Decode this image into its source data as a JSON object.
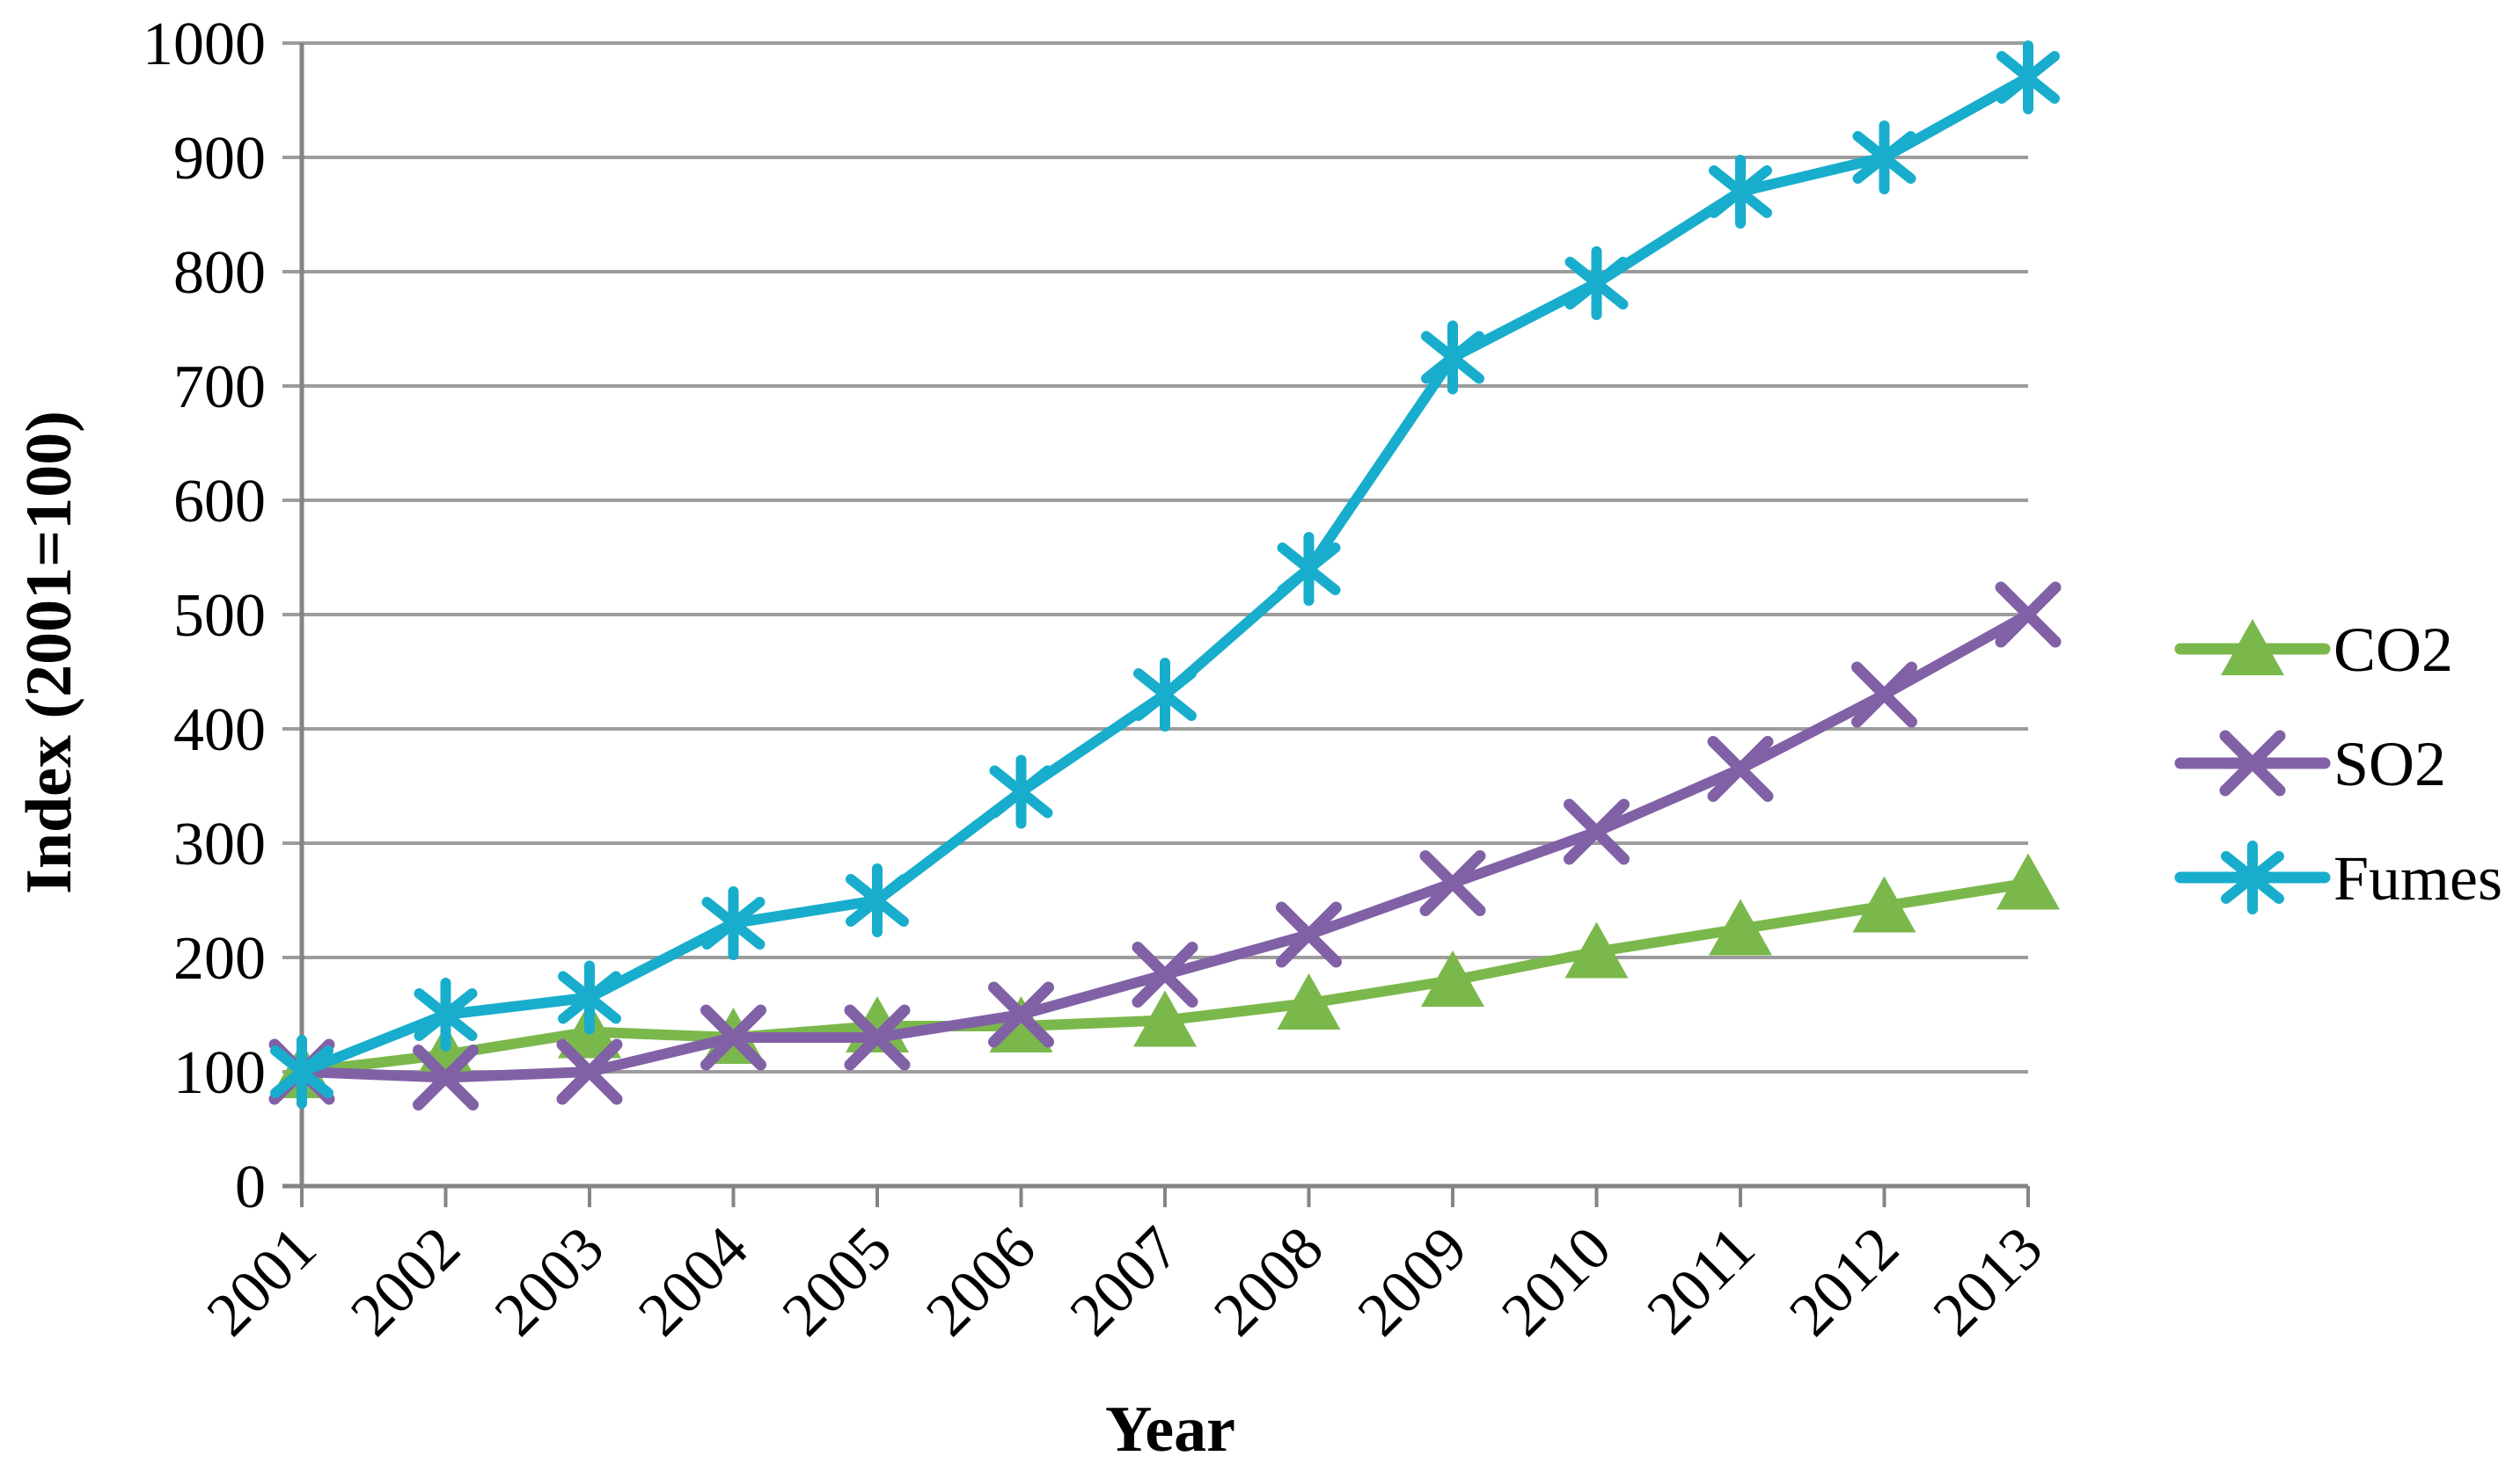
{
  "chart_data": {
    "type": "line",
    "title": "",
    "xlabel": "Year",
    "ylabel": "Index (2001=100)",
    "categories": [
      2001,
      2002,
      2003,
      2004,
      2005,
      2006,
      2007,
      2008,
      2009,
      2010,
      2011,
      2012,
      2013
    ],
    "x_tick_labels": [
      "2001",
      "2002",
      "2003",
      "2004",
      "2005",
      "2006",
      "2007",
      "2008",
      "2009",
      "2010",
      "2011",
      "2012",
      "2013"
    ],
    "y_tick_labels": [
      "0",
      "100",
      "200",
      "300",
      "400",
      "500",
      "600",
      "700",
      "800",
      "900",
      "1000"
    ],
    "ylim": [
      0,
      1000
    ],
    "y_step": 100,
    "grid": true,
    "legend_position": "right",
    "series": [
      {
        "name": "CO2",
        "color": "#7bb84c",
        "marker": "triangle",
        "values": [
          100,
          115,
          135,
          130,
          140,
          140,
          145,
          160,
          180,
          205,
          225,
          245,
          265
        ]
      },
      {
        "name": "SO2",
        "color": "#8161a6",
        "marker": "x-cross",
        "values": [
          100,
          95,
          100,
          130,
          130,
          150,
          185,
          220,
          265,
          310,
          365,
          430,
          500
        ]
      },
      {
        "name": "Fumes",
        "color": "#18adcc",
        "marker": "asterisk",
        "values": [
          100,
          150,
          165,
          230,
          250,
          345,
          430,
          540,
          725,
          790,
          870,
          900,
          970
        ]
      }
    ]
  },
  "styles": {
    "background": "#ffffff",
    "gridline_color": "#9c9c9c",
    "axis_color": "#848484",
    "text_color": "#000000"
  }
}
